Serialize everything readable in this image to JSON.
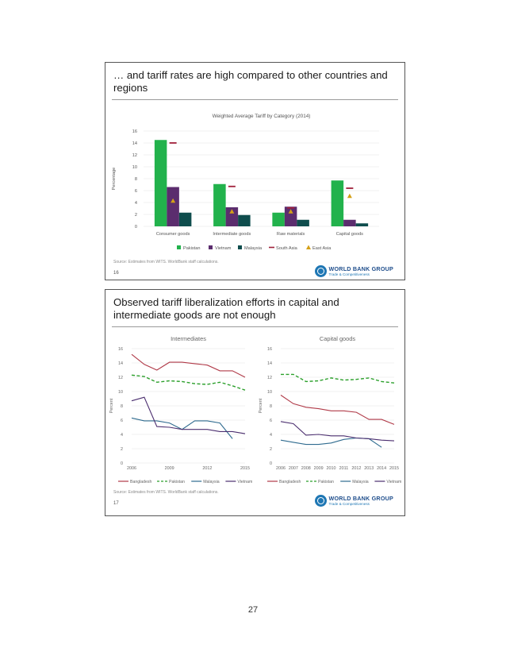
{
  "slide1": {
    "title": "… and tariff rates are high compared to other countries and regions",
    "source": "Source: Estimates from WITS. WorldBank staff calculations.",
    "slide_number": "16",
    "logo": {
      "name": "WORLD BANK GROUP",
      "sub": "Trade & Competitiveness"
    }
  },
  "slide2": {
    "title": "Observed tariff liberalization efforts in capital and intermediate goods are not enough",
    "source": "Source: Estimates from WITS. WorldBank staff calculations.",
    "slide_number": "17",
    "logo": {
      "name": "WORLD BANK GROUP",
      "sub": "Trade & Competitiveness"
    }
  },
  "page_number": "27",
  "chart_data": [
    {
      "type": "bar",
      "title": "Weighted Average Tariff by Category (2014)",
      "ylabel": "Percentage",
      "xlabel": "",
      "ylim": [
        0,
        16
      ],
      "yticks": [
        "0",
        "2",
        "4",
        "6",
        "8",
        "10",
        "12",
        "14",
        "16"
      ],
      "categories": [
        "Consumer goods",
        "Intermediate goods",
        "Raw materials",
        "Capital goods"
      ],
      "series": [
        {
          "name": "Pakistan",
          "mark": "bar",
          "color": "#22b24c",
          "values": [
            14.5,
            7.1,
            2.3,
            7.7
          ]
        },
        {
          "name": "Vietnam",
          "mark": "bar",
          "color": "#5b2d6e",
          "values": [
            6.6,
            3.2,
            3.3,
            1.1
          ]
        },
        {
          "name": "Malaysia",
          "mark": "bar",
          "color": "#0f4d4d",
          "values": [
            2.3,
            1.9,
            1.1,
            0.5
          ]
        },
        {
          "name": "South Asia",
          "mark": "dash",
          "color": "#a0203a",
          "values": [
            14.0,
            6.7,
            3.1,
            6.4
          ]
        },
        {
          "name": "East Asia",
          "mark": "triangle",
          "color": "#d4a017",
          "values": [
            4.3,
            2.5,
            2.5,
            5.1
          ]
        }
      ],
      "legend_position": "bottom",
      "grid": true
    },
    {
      "type": "line",
      "title": "Intermediates",
      "ylabel": "Percent",
      "ylim": [
        0,
        16
      ],
      "yticks": [
        "0",
        "2",
        "4",
        "6",
        "8",
        "10",
        "12",
        "14",
        "16"
      ],
      "x": [
        2006,
        2007,
        2008,
        2009,
        2010,
        2011,
        2012,
        2013,
        2014,
        2015
      ],
      "xticks": [
        "2006",
        "2009",
        "2012",
        "2015"
      ],
      "series": [
        {
          "name": "Bangladesh",
          "color": "#b03a48",
          "dash": false,
          "values": [
            15.2,
            13.8,
            13.0,
            14.1,
            14.1,
            13.9,
            13.7,
            12.9,
            12.9,
            12.0
          ]
        },
        {
          "name": "Pakistan",
          "color": "#2ca02c",
          "dash": true,
          "values": [
            12.3,
            12.1,
            11.3,
            11.5,
            11.4,
            11.1,
            11.0,
            11.3,
            10.8,
            10.2
          ]
        },
        {
          "name": "Malaysia",
          "color": "#2f6b8f",
          "dash": false,
          "values": [
            6.3,
            5.9,
            5.9,
            5.6,
            4.7,
            5.9,
            5.9,
            5.6,
            3.4,
            null
          ]
        },
        {
          "name": "Vietnam",
          "color": "#4b2e6f",
          "dash": false,
          "values": [
            8.7,
            9.2,
            5.1,
            5.0,
            4.7,
            4.7,
            4.7,
            4.4,
            4.4,
            4.1
          ]
        }
      ],
      "legend_position": "bottom",
      "grid": true
    },
    {
      "type": "line",
      "title": "Capital goods",
      "ylabel": "Percent",
      "ylim": [
        0,
        16
      ],
      "yticks": [
        "0",
        "2",
        "4",
        "6",
        "8",
        "10",
        "12",
        "14",
        "16"
      ],
      "x": [
        2006,
        2007,
        2008,
        2009,
        2010,
        2011,
        2012,
        2013,
        2014,
        2015
      ],
      "xticks": [
        "2006",
        "2007",
        "2008",
        "2009",
        "2010",
        "2011",
        "2012",
        "2013",
        "2014",
        "2015"
      ],
      "series": [
        {
          "name": "Bangladesh",
          "color": "#b03a48",
          "dash": false,
          "values": [
            9.5,
            8.3,
            7.8,
            7.6,
            7.3,
            7.3,
            7.1,
            6.1,
            6.1,
            5.4
          ]
        },
        {
          "name": "Pakistan",
          "color": "#2ca02c",
          "dash": true,
          "values": [
            12.4,
            12.4,
            11.4,
            11.5,
            11.9,
            11.6,
            11.7,
            11.9,
            11.4,
            11.2
          ]
        },
        {
          "name": "Malaysia",
          "color": "#2f6b8f",
          "dash": false,
          "values": [
            3.2,
            2.9,
            2.6,
            2.6,
            2.8,
            3.3,
            3.5,
            3.4,
            2.2,
            null
          ]
        },
        {
          "name": "Vietnam",
          "color": "#4b2e6f",
          "dash": false,
          "values": [
            5.8,
            5.5,
            3.9,
            4.0,
            3.8,
            3.8,
            3.5,
            3.4,
            3.2,
            3.1
          ]
        }
      ],
      "legend_position": "bottom",
      "grid": true
    }
  ]
}
